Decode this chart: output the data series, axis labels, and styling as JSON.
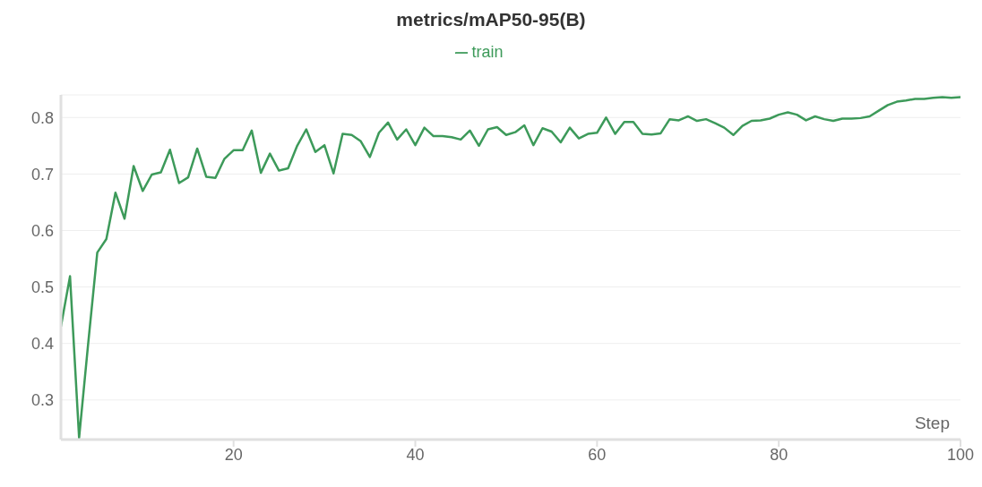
{
  "chart_data": {
    "type": "line",
    "title": "metrics/mAP50-95(B)",
    "xlabel": "Step",
    "x": [
      1,
      2,
      3,
      4,
      5,
      6,
      7,
      8,
      9,
      10,
      11,
      12,
      13,
      14,
      15,
      16,
      17,
      18,
      19,
      20,
      21,
      22,
      23,
      24,
      25,
      26,
      27,
      28,
      29,
      30,
      31,
      32,
      33,
      34,
      35,
      36,
      37,
      38,
      39,
      40,
      41,
      42,
      43,
      44,
      45,
      46,
      47,
      48,
      49,
      50,
      51,
      52,
      53,
      54,
      55,
      56,
      57,
      58,
      59,
      60,
      61,
      62,
      63,
      64,
      65,
      66,
      67,
      68,
      69,
      70,
      71,
      72,
      73,
      74,
      75,
      76,
      77,
      78,
      79,
      80,
      81,
      82,
      83,
      84,
      85,
      86,
      87,
      88,
      89,
      90,
      91,
      92,
      93,
      94,
      95,
      96,
      97,
      98,
      99,
      100
    ],
    "series": [
      {
        "name": "train",
        "color": "#3d9a5a",
        "values": [
          0.43,
          0.519,
          0.233,
          0.4,
          0.561,
          0.585,
          0.667,
          0.621,
          0.714,
          0.67,
          0.699,
          0.703,
          0.743,
          0.684,
          0.694,
          0.745,
          0.695,
          0.693,
          0.727,
          0.742,
          0.742,
          0.777,
          0.702,
          0.736,
          0.706,
          0.71,
          0.75,
          0.779,
          0.739,
          0.751,
          0.701,
          0.771,
          0.769,
          0.758,
          0.73,
          0.773,
          0.791,
          0.761,
          0.779,
          0.751,
          0.782,
          0.767,
          0.767,
          0.765,
          0.761,
          0.777,
          0.75,
          0.779,
          0.783,
          0.769,
          0.774,
          0.786,
          0.751,
          0.781,
          0.775,
          0.756,
          0.782,
          0.763,
          0.771,
          0.773,
          0.8,
          0.771,
          0.792,
          0.792,
          0.771,
          0.77,
          0.772,
          0.797,
          0.795,
          0.802,
          0.794,
          0.797,
          0.79,
          0.782,
          0.769,
          0.785,
          0.794,
          0.795,
          0.798,
          0.805,
          0.809,
          0.805,
          0.795,
          0.802,
          0.797,
          0.794,
          0.798,
          0.798,
          0.799,
          0.802,
          0.812,
          0.822,
          0.828,
          0.83,
          0.833,
          0.833,
          0.835,
          0.836,
          0.835,
          0.836
        ]
      }
    ],
    "xlim": [
      1,
      100
    ],
    "xticks": [
      20,
      40,
      60,
      80,
      100
    ],
    "ylim": [
      0.23,
      0.84
    ],
    "yticks": [
      0.3,
      0.4,
      0.5,
      0.6,
      0.7,
      0.8
    ],
    "grid": "y",
    "legend": "top",
    "marker": "none",
    "line_style": "solid"
  }
}
